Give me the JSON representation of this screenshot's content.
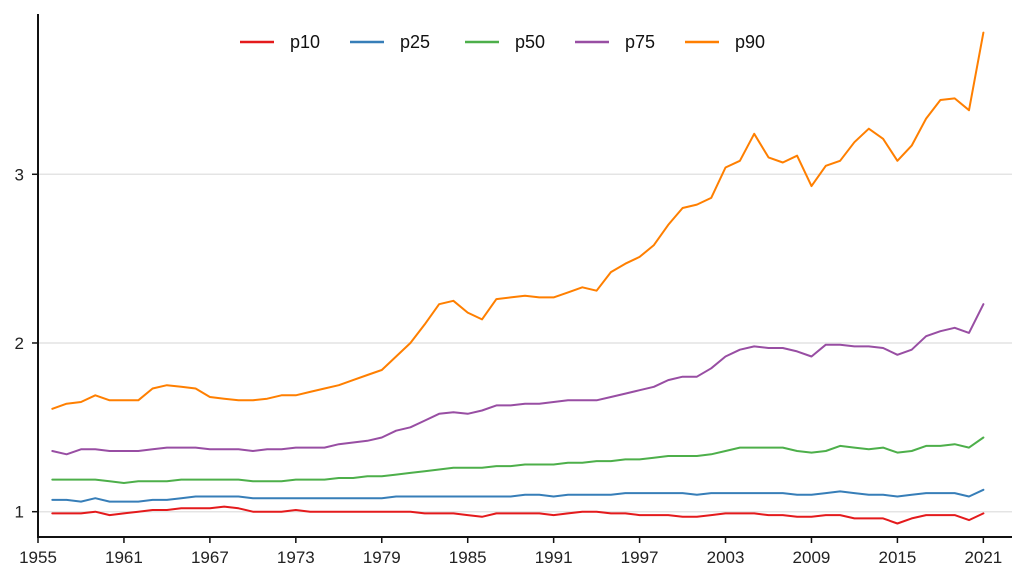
{
  "chart_data": {
    "type": "line",
    "title": "",
    "xlabel": "",
    "ylabel": "",
    "xlim": [
      1955,
      2023
    ],
    "ylim": [
      0.85,
      3.95
    ],
    "x_ticks": [
      1955,
      1961,
      1967,
      1973,
      1979,
      1985,
      1991,
      1997,
      2003,
      2009,
      2015,
      2021
    ],
    "y_ticks": [
      1,
      2,
      3
    ],
    "y_tick_labels": [
      "1",
      "2",
      "3"
    ],
    "grid": "horizontal",
    "legend_position": "top",
    "x": [
      1956,
      1957,
      1958,
      1959,
      1960,
      1961,
      1962,
      1963,
      1964,
      1965,
      1966,
      1967,
      1968,
      1969,
      1970,
      1971,
      1972,
      1973,
      1974,
      1975,
      1976,
      1977,
      1978,
      1979,
      1980,
      1981,
      1982,
      1983,
      1984,
      1985,
      1986,
      1987,
      1988,
      1989,
      1990,
      1991,
      1992,
      1993,
      1994,
      1995,
      1996,
      1997,
      1998,
      1999,
      2000,
      2001,
      2002,
      2003,
      2004,
      2005,
      2006,
      2007,
      2008,
      2009,
      2010,
      2011,
      2012,
      2013,
      2014,
      2015,
      2016,
      2017,
      2018,
      2019,
      2020,
      2021
    ],
    "series": [
      {
        "name": "p10",
        "color": "#e41a1c",
        "values": [
          0.99,
          0.99,
          0.99,
          1.0,
          0.98,
          0.99,
          1.0,
          1.01,
          1.01,
          1.02,
          1.02,
          1.02,
          1.03,
          1.02,
          1.0,
          1.0,
          1.0,
          1.01,
          1.0,
          1.0,
          1.0,
          1.0,
          1.0,
          1.0,
          1.0,
          1.0,
          0.99,
          0.99,
          0.99,
          0.98,
          0.97,
          0.99,
          0.99,
          0.99,
          0.99,
          0.98,
          0.99,
          1.0,
          1.0,
          0.99,
          0.99,
          0.98,
          0.98,
          0.98,
          0.97,
          0.97,
          0.98,
          0.99,
          0.99,
          0.99,
          0.98,
          0.98,
          0.97,
          0.97,
          0.98,
          0.98,
          0.96,
          0.96,
          0.96,
          0.93,
          0.96,
          0.98,
          0.98,
          0.98,
          0.95,
          0.99
        ]
      },
      {
        "name": "p25",
        "color": "#377eb8",
        "values": [
          1.07,
          1.07,
          1.06,
          1.08,
          1.06,
          1.06,
          1.06,
          1.07,
          1.07,
          1.08,
          1.09,
          1.09,
          1.09,
          1.09,
          1.08,
          1.08,
          1.08,
          1.08,
          1.08,
          1.08,
          1.08,
          1.08,
          1.08,
          1.08,
          1.09,
          1.09,
          1.09,
          1.09,
          1.09,
          1.09,
          1.09,
          1.09,
          1.09,
          1.1,
          1.1,
          1.09,
          1.1,
          1.1,
          1.1,
          1.1,
          1.11,
          1.11,
          1.11,
          1.11,
          1.11,
          1.1,
          1.11,
          1.11,
          1.11,
          1.11,
          1.11,
          1.11,
          1.1,
          1.1,
          1.11,
          1.12,
          1.11,
          1.1,
          1.1,
          1.09,
          1.1,
          1.11,
          1.11,
          1.11,
          1.09,
          1.13
        ]
      },
      {
        "name": "p50",
        "color": "#4daf4a",
        "values": [
          1.19,
          1.19,
          1.19,
          1.19,
          1.18,
          1.17,
          1.18,
          1.18,
          1.18,
          1.19,
          1.19,
          1.19,
          1.19,
          1.19,
          1.18,
          1.18,
          1.18,
          1.19,
          1.19,
          1.19,
          1.2,
          1.2,
          1.21,
          1.21,
          1.22,
          1.23,
          1.24,
          1.25,
          1.26,
          1.26,
          1.26,
          1.27,
          1.27,
          1.28,
          1.28,
          1.28,
          1.29,
          1.29,
          1.3,
          1.3,
          1.31,
          1.31,
          1.32,
          1.33,
          1.33,
          1.33,
          1.34,
          1.36,
          1.38,
          1.38,
          1.38,
          1.38,
          1.36,
          1.35,
          1.36,
          1.39,
          1.38,
          1.37,
          1.38,
          1.35,
          1.36,
          1.39,
          1.39,
          1.4,
          1.38,
          1.44
        ]
      },
      {
        "name": "p75",
        "color": "#984ea3",
        "values": [
          1.36,
          1.34,
          1.37,
          1.37,
          1.36,
          1.36,
          1.36,
          1.37,
          1.38,
          1.38,
          1.38,
          1.37,
          1.37,
          1.37,
          1.36,
          1.37,
          1.37,
          1.38,
          1.38,
          1.38,
          1.4,
          1.41,
          1.42,
          1.44,
          1.48,
          1.5,
          1.54,
          1.58,
          1.59,
          1.58,
          1.6,
          1.63,
          1.63,
          1.64,
          1.64,
          1.65,
          1.66,
          1.66,
          1.66,
          1.68,
          1.7,
          1.72,
          1.74,
          1.78,
          1.8,
          1.8,
          1.85,
          1.92,
          1.96,
          1.98,
          1.97,
          1.97,
          1.95,
          1.92,
          1.99,
          1.99,
          1.98,
          1.98,
          1.97,
          1.93,
          1.96,
          2.04,
          2.07,
          2.09,
          2.06,
          2.23
        ]
      },
      {
        "name": "p90",
        "color": "#ff7f00",
        "values": [
          1.61,
          1.64,
          1.65,
          1.69,
          1.66,
          1.66,
          1.66,
          1.73,
          1.75,
          1.74,
          1.73,
          1.68,
          1.67,
          1.66,
          1.66,
          1.67,
          1.69,
          1.69,
          1.71,
          1.73,
          1.75,
          1.78,
          1.81,
          1.84,
          1.92,
          2.0,
          2.11,
          2.23,
          2.25,
          2.18,
          2.14,
          2.26,
          2.27,
          2.28,
          2.27,
          2.27,
          2.3,
          2.33,
          2.31,
          2.42,
          2.47,
          2.51,
          2.58,
          2.7,
          2.8,
          2.82,
          2.86,
          3.04,
          3.08,
          3.24,
          3.1,
          3.07,
          3.11,
          2.93,
          3.05,
          3.08,
          3.19,
          3.27,
          3.21,
          3.08,
          3.17,
          3.33,
          3.44,
          3.45,
          3.38,
          3.84
        ]
      }
    ]
  }
}
